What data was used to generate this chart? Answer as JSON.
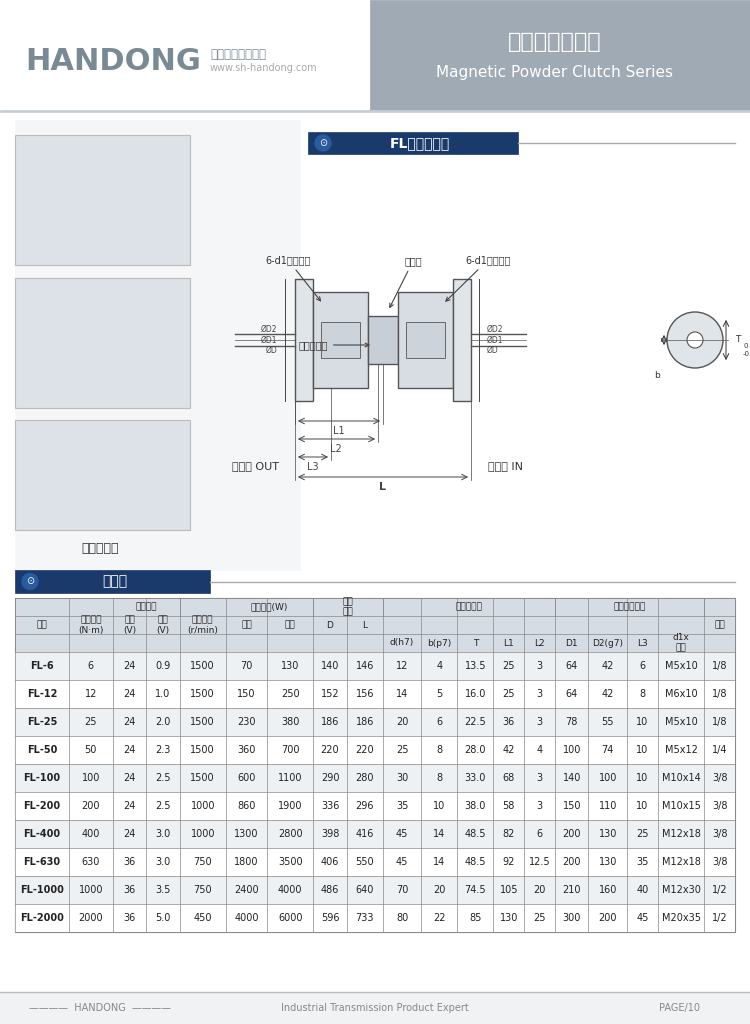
{
  "bg_color": "#ffffff",
  "header_bg": "#9aa5b0",
  "title_cn": "磁粉离合器系列",
  "title_en": "Magnetic Powder Clutch Series",
  "brand": "HANDONG",
  "brand_subtitle": "工业传动产品专家",
  "brand_web": "www.sh-handong.com",
  "section1_title": "FL型主要尺寸",
  "section2_title": "规格表",
  "footer_brand": "HANDONG",
  "footer_text": "Industrial Transmission Product Expert",
  "footer_page": "PAGE/10",
  "table_header_bg": "#d6dce4",
  "table_row_odd": "#eef1f4",
  "table_row_even": "#ffffff",
  "table_border": "#aaaaaa",
  "section_title_bg": "#1a3a6b",
  "section_title_color": "#ffffff",
  "rows": [
    [
      "FL-6",
      "6",
      "24",
      "0.9",
      "1500",
      "70",
      "130",
      "140",
      "146",
      "12",
      "4",
      "13.5",
      "25",
      "3",
      "64",
      "42",
      "6",
      "M5x10",
      "1/8"
    ],
    [
      "FL-12",
      "12",
      "24",
      "1.0",
      "1500",
      "150",
      "250",
      "152",
      "156",
      "14",
      "5",
      "16.0",
      "25",
      "3",
      "64",
      "42",
      "8",
      "M6x10",
      "1/8"
    ],
    [
      "FL-25",
      "25",
      "24",
      "2.0",
      "1500",
      "230",
      "380",
      "186",
      "186",
      "20",
      "6",
      "22.5",
      "36",
      "3",
      "78",
      "55",
      "10",
      "M5x10",
      "1/8"
    ],
    [
      "FL-50",
      "50",
      "24",
      "2.3",
      "1500",
      "360",
      "700",
      "220",
      "220",
      "25",
      "8",
      "28.0",
      "42",
      "4",
      "100",
      "74",
      "10",
      "M5x12",
      "1/4"
    ],
    [
      "FL-100",
      "100",
      "24",
      "2.5",
      "1500",
      "600",
      "1100",
      "290",
      "280",
      "30",
      "8",
      "33.0",
      "68",
      "3",
      "140",
      "100",
      "10",
      "M10x14",
      "3/8"
    ],
    [
      "FL-200",
      "200",
      "24",
      "2.5",
      "1000",
      "860",
      "1900",
      "336",
      "296",
      "35",
      "10",
      "38.0",
      "58",
      "3",
      "150",
      "110",
      "10",
      "M10x15",
      "3/8"
    ],
    [
      "FL-400",
      "400",
      "24",
      "3.0",
      "1000",
      "1300",
      "2800",
      "398",
      "416",
      "45",
      "14",
      "48.5",
      "82",
      "6",
      "200",
      "130",
      "25",
      "M12x18",
      "3/8"
    ],
    [
      "FL-630",
      "630",
      "36",
      "3.0",
      "750",
      "1800",
      "3500",
      "406",
      "550",
      "45",
      "14",
      "48.5",
      "92",
      "12.5",
      "200",
      "130",
      "35",
      "M12x18",
      "3/8"
    ],
    [
      "FL-1000",
      "1000",
      "36",
      "3.5",
      "750",
      "2400",
      "4000",
      "486",
      "640",
      "70",
      "20",
      "74.5",
      "105",
      "20",
      "210",
      "160",
      "40",
      "M12x30",
      "1/2"
    ],
    [
      "FL-2000",
      "2000",
      "36",
      "5.0",
      "450",
      "4000",
      "6000",
      "596",
      "733",
      "80",
      "22",
      "85",
      "130",
      "25",
      "300",
      "200",
      "45",
      "M20x35",
      "1/2"
    ]
  ],
  "col_widths_raw": [
    42,
    34,
    26,
    26,
    36,
    32,
    36,
    26,
    28,
    30,
    28,
    28,
    24,
    24,
    26,
    30,
    24,
    36,
    24
  ]
}
